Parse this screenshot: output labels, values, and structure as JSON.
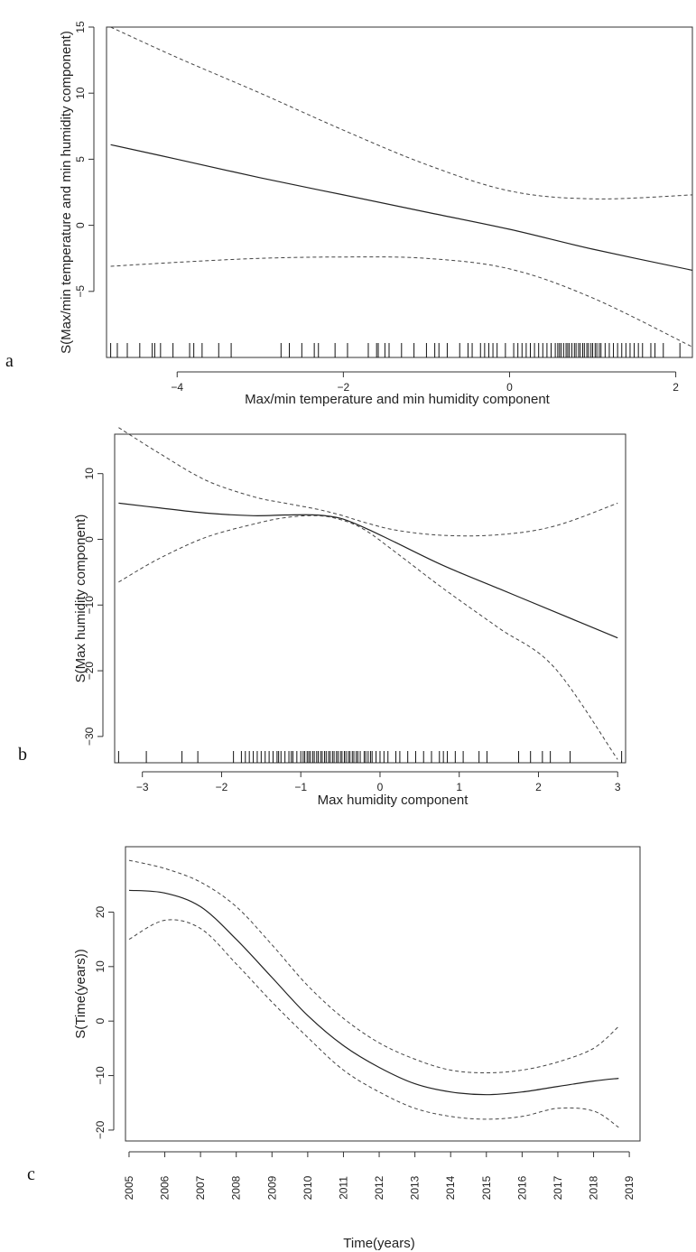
{
  "chart_data": [
    {
      "id": "a",
      "type": "line",
      "panel_label": "a",
      "xlabel": "Max/min temperature and min humidity component",
      "ylabel": "S(Max/min temperature and min humidity component)",
      "xlim": [
        -4.85,
        2.2
      ],
      "ylim": [
        -10,
        15
      ],
      "xticks": [
        -4,
        -2,
        0,
        2
      ],
      "yticks": [
        -5,
        0,
        5,
        10,
        15
      ],
      "series": [
        {
          "role": "fit",
          "x": [
            -4.8,
            -4.0,
            -3.0,
            -2.0,
            -1.0,
            0.0,
            1.0,
            2.2
          ],
          "values": [
            6.1,
            5.0,
            3.6,
            2.3,
            1.0,
            -0.3,
            -1.8,
            -3.4
          ]
        },
        {
          "role": "upper",
          "x": [
            -4.8,
            -4.0,
            -3.0,
            -2.0,
            -1.0,
            0.0,
            1.0,
            2.2
          ],
          "values": [
            15.0,
            12.7,
            10.0,
            7.2,
            4.6,
            2.6,
            2.0,
            2.3
          ]
        },
        {
          "role": "lower",
          "x": [
            -4.8,
            -4.0,
            -3.0,
            -2.0,
            -1.0,
            0.0,
            1.0,
            2.2
          ],
          "values": [
            -3.1,
            -2.8,
            -2.5,
            -2.4,
            -2.5,
            -3.3,
            -5.5,
            -9.2
          ]
        }
      ],
      "rug": [
        -4.8,
        -4.72,
        -4.6,
        -4.45,
        -4.3,
        -4.27,
        -4.2,
        -4.05,
        -3.85,
        -3.8,
        -3.7,
        -3.5,
        -3.35,
        -2.75,
        -2.65,
        -2.5,
        -2.35,
        -2.3,
        -2.1,
        -1.95,
        -1.7,
        -1.6,
        -1.58,
        -1.5,
        -1.45,
        -1.3,
        -1.15,
        -1.0,
        -0.9,
        -0.85,
        -0.75,
        -0.6,
        -0.5,
        -0.45,
        -0.35,
        -0.3,
        -0.25,
        -0.2,
        -0.15,
        -0.05,
        0.05,
        0.1,
        0.15,
        0.2,
        0.25,
        0.3,
        0.35,
        0.4,
        0.45,
        0.5,
        0.55,
        0.58,
        0.6,
        0.62,
        0.65,
        0.68,
        0.7,
        0.72,
        0.75,
        0.78,
        0.8,
        0.83,
        0.85,
        0.88,
        0.9,
        0.93,
        0.95,
        0.98,
        1.0,
        1.03,
        1.05,
        1.08,
        1.1,
        1.15,
        1.2,
        1.25,
        1.3,
        1.35,
        1.4,
        1.45,
        1.5,
        1.55,
        1.6,
        1.7,
        1.75,
        1.85,
        2.05
      ]
    },
    {
      "id": "b",
      "type": "line",
      "panel_label": "b",
      "xlabel": "Max humidity component",
      "ylabel": "S(Max humidity component)",
      "xlim": [
        -3.35,
        3.1
      ],
      "ylim": [
        -34,
        16
      ],
      "xticks": [
        -3,
        -2,
        -1,
        0,
        1,
        2,
        3
      ],
      "yticks": [
        -30,
        -20,
        -10,
        0,
        10
      ],
      "series": [
        {
          "role": "fit",
          "x": [
            -3.3,
            -2.8,
            -2.2,
            -1.6,
            -1.2,
            -0.8,
            -0.5,
            -0.2,
            0.2,
            0.8,
            1.5,
            2.2,
            3.0
          ],
          "values": [
            5.5,
            4.8,
            4.0,
            3.6,
            3.7,
            3.7,
            3.2,
            1.8,
            -0.5,
            -4.0,
            -7.5,
            -11.0,
            -15.0
          ]
        },
        {
          "role": "upper",
          "x": [
            -3.3,
            -2.8,
            -2.2,
            -1.6,
            -1.2,
            -0.8,
            -0.5,
            -0.2,
            0.2,
            0.8,
            1.5,
            2.2,
            3.0
          ],
          "values": [
            17.0,
            13.2,
            9.0,
            6.5,
            5.5,
            4.6,
            3.7,
            2.6,
            1.4,
            0.6,
            0.7,
            2.0,
            5.5
          ]
        },
        {
          "role": "lower",
          "x": [
            -3.3,
            -2.8,
            -2.2,
            -1.6,
            -1.2,
            -0.8,
            -0.5,
            -0.2,
            0.2,
            0.8,
            1.5,
            2.2,
            3.0
          ],
          "values": [
            -6.5,
            -3.0,
            0.3,
            2.3,
            3.3,
            3.6,
            3.0,
            1.5,
            -2.0,
            -7.5,
            -13.5,
            -19.5,
            -33.5
          ]
        }
      ],
      "rug": [
        -3.3,
        -2.95,
        -2.5,
        -2.3,
        -1.85,
        -1.75,
        -1.7,
        -1.65,
        -1.6,
        -1.55,
        -1.5,
        -1.45,
        -1.4,
        -1.35,
        -1.3,
        -1.28,
        -1.25,
        -1.2,
        -1.15,
        -1.12,
        -1.1,
        -1.05,
        -1.0,
        -0.97,
        -0.95,
        -0.92,
        -0.9,
        -0.88,
        -0.85,
        -0.83,
        -0.8,
        -0.78,
        -0.75,
        -0.73,
        -0.7,
        -0.68,
        -0.65,
        -0.63,
        -0.6,
        -0.58,
        -0.55,
        -0.53,
        -0.5,
        -0.48,
        -0.45,
        -0.43,
        -0.4,
        -0.38,
        -0.35,
        -0.33,
        -0.3,
        -0.28,
        -0.25,
        -0.2,
        -0.18,
        -0.15,
        -0.12,
        -0.1,
        -0.05,
        0.0,
        0.05,
        0.1,
        0.2,
        0.25,
        0.35,
        0.45,
        0.55,
        0.65,
        0.75,
        0.8,
        0.85,
        0.95,
        1.05,
        1.25,
        1.35,
        1.75,
        1.9,
        2.05,
        2.15,
        2.4,
        3.05
      ]
    },
    {
      "id": "c",
      "type": "line",
      "panel_label": "c",
      "xlabel": "Time(years)",
      "ylabel": "S(Time(years))",
      "xlim": [
        2004.9,
        2019.3
      ],
      "ylim": [
        -22,
        32
      ],
      "xticks": [
        2005,
        2006,
        2007,
        2008,
        2009,
        2010,
        2011,
        2012,
        2013,
        2014,
        2015,
        2016,
        2017,
        2018,
        2019
      ],
      "yticks": [
        -20,
        -10,
        0,
        10,
        20
      ],
      "series": [
        {
          "role": "fit",
          "x": [
            2005.0,
            2006.0,
            2007.0,
            2008.0,
            2009.0,
            2010.0,
            2011.0,
            2012.0,
            2013.0,
            2014.0,
            2015.0,
            2016.0,
            2017.0,
            2018.0,
            2018.7
          ],
          "values": [
            24.0,
            23.5,
            21.0,
            15.0,
            8.0,
            1.0,
            -4.5,
            -8.5,
            -11.5,
            -13.0,
            -13.5,
            -13.0,
            -12.0,
            -11.0,
            -10.5
          ]
        },
        {
          "role": "upper",
          "x": [
            2005.0,
            2006.0,
            2007.0,
            2008.0,
            2009.0,
            2010.0,
            2011.0,
            2012.0,
            2013.0,
            2014.0,
            2015.0,
            2016.0,
            2017.0,
            2018.0,
            2018.7
          ],
          "values": [
            29.5,
            28.0,
            25.5,
            21.0,
            14.0,
            6.5,
            0.5,
            -4.0,
            -7.0,
            -9.0,
            -9.5,
            -9.0,
            -7.5,
            -5.0,
            -1.0
          ]
        },
        {
          "role": "lower",
          "x": [
            2005.0,
            2006.0,
            2007.0,
            2008.0,
            2009.0,
            2010.0,
            2011.0,
            2012.0,
            2013.0,
            2014.0,
            2015.0,
            2016.0,
            2017.0,
            2018.0,
            2018.7
          ],
          "values": [
            15.0,
            18.5,
            17.0,
            10.5,
            3.5,
            -3.0,
            -9.0,
            -13.0,
            -16.0,
            -17.5,
            -18.0,
            -17.5,
            -16.0,
            -16.5,
            -19.5
          ]
        }
      ]
    }
  ]
}
